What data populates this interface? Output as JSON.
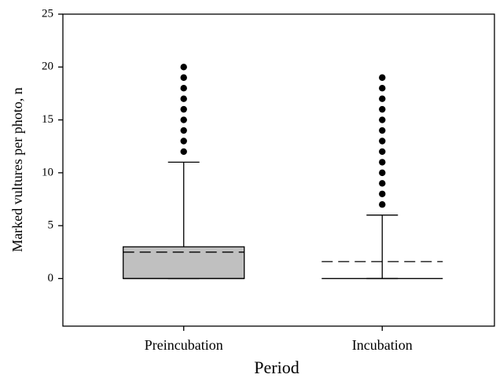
{
  "chart_data": {
    "type": "box",
    "x_label": "Period",
    "y_label": "Marked vultures per photo, n",
    "categories": [
      "Preincubation",
      "Incubation"
    ],
    "boxes": [
      {
        "whisker_low": 0,
        "q1": 0,
        "median": 0,
        "q3": 3,
        "whisker_high": 11,
        "mean": 2.5,
        "color": "#c0c0c0",
        "outliers": [
          12,
          13,
          14,
          15,
          16,
          17,
          18,
          19,
          20
        ]
      },
      {
        "whisker_low": 0,
        "q1": 0,
        "median": 0,
        "q3": 0,
        "whisker_high": 6,
        "mean": 1.6,
        "color": "#c0c0c0",
        "outliers": [
          7,
          8,
          9,
          10,
          11,
          12,
          13,
          14,
          15,
          16,
          17,
          18,
          19
        ]
      }
    ],
    "ylim": [
      -4.5,
      25
    ],
    "yticks": [
      0,
      5,
      10,
      15,
      20,
      25
    ]
  }
}
